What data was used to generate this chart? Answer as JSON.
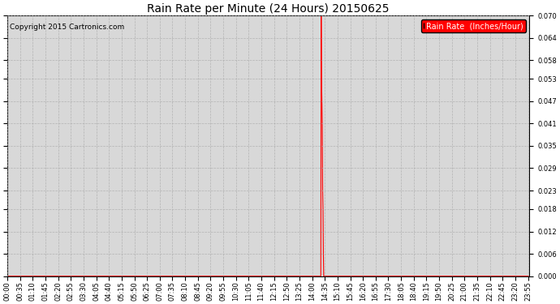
{
  "title": "Rain Rate per Minute (24 Hours) 20150625",
  "copyright": "Copyright 2015 Cartronics.com",
  "legend_label": "Rain Rate  (Inches/Hour)",
  "fig_background_color": "#ffffff",
  "plot_bg_color": "#d8d8d8",
  "line_color": "#ff0000",
  "grid_color": "#aaaaaa",
  "ylim": [
    0.0,
    0.07
  ],
  "yticks": [
    0.0,
    0.006,
    0.012,
    0.018,
    0.023,
    0.029,
    0.035,
    0.041,
    0.047,
    0.053,
    0.058,
    0.064,
    0.07
  ],
  "xtick_interval_minutes": 35,
  "total_minutes": 1440,
  "spike_values": [
    [
      0,
      0.0
    ],
    [
      864,
      0.0
    ],
    [
      865,
      0.07
    ],
    [
      866,
      0.053
    ],
    [
      867,
      0.047
    ],
    [
      868,
      0.041
    ],
    [
      869,
      0.023
    ],
    [
      870,
      0.018
    ],
    [
      871,
      0.006
    ],
    [
      872,
      0.0
    ],
    [
      1439,
      0.0
    ]
  ],
  "title_fontsize": 10,
  "tick_fontsize": 6,
  "copyright_fontsize": 6.5,
  "legend_fontsize": 7
}
